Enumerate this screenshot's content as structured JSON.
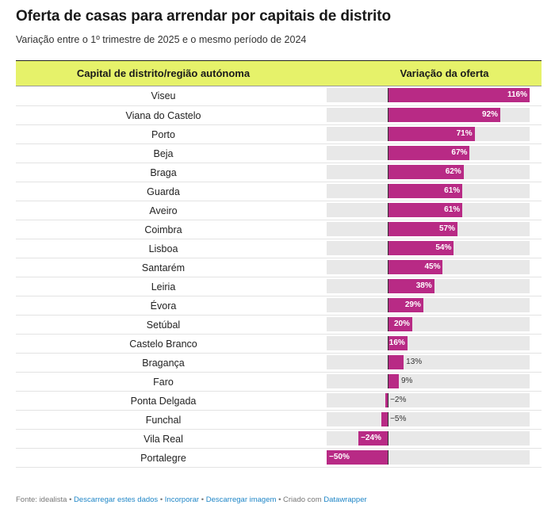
{
  "title": "Oferta de casas para arrendar por capitais de distrito",
  "subtitle": "Variação entre o 1º trimestre de 2025 e o mesmo período de 2024",
  "colors": {
    "header_bg": "#e6f26a",
    "bar": "#b82a85",
    "track": "#e8e8e8",
    "link": "#1f86c7"
  },
  "footer": {
    "source": "Fonte: idealista",
    "sep": "•",
    "link_download": "Descarregar estes dados",
    "link_embed": "Incorporar",
    "link_image": "Descarregar imagem",
    "created": "Criado com",
    "link_dw": "Datawrapper"
  },
  "chart_data": {
    "type": "bar",
    "orientation": "horizontal",
    "columns": [
      "Capital de distrito/região autónoma",
      "Variação da oferta"
    ],
    "xlim": [
      -50,
      116
    ],
    "unit": "%",
    "categories": [
      "Viseu",
      "Viana do Castelo",
      "Porto",
      "Beja",
      "Braga",
      "Guarda",
      "Aveiro",
      "Coimbra",
      "Lisboa",
      "Santarém",
      "Leiria",
      "Évora",
      "Setúbal",
      "Castelo Branco",
      "Bragança",
      "Faro",
      "Ponta Delgada",
      "Funchal",
      "Vila Real",
      "Portalegre"
    ],
    "values": [
      116,
      92,
      71,
      67,
      62,
      61,
      61,
      57,
      54,
      45,
      38,
      29,
      20,
      16,
      13,
      9,
      -2,
      -5,
      -24,
      -50
    ],
    "labels": [
      "116%",
      "92%",
      "71%",
      "67%",
      "62%",
      "61%",
      "61%",
      "57%",
      "54%",
      "45%",
      "38%",
      "29%",
      "20%",
      "16%",
      "13%",
      "9%",
      "−2%",
      "−5%",
      "−24%",
      "−50%"
    ]
  }
}
